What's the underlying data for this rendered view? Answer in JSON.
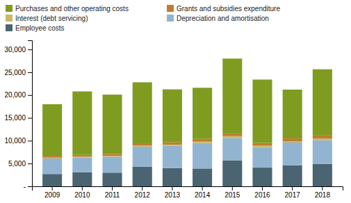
{
  "chart_data": {
    "type": "bar",
    "stacked": true,
    "grid": false,
    "legend": "upper left",
    "categories": [
      "2009",
      "2010",
      "2011",
      "2012",
      "2013",
      "2014",
      "2015",
      "2016",
      "2017",
      "2018"
    ],
    "series": [
      {
        "name": "Employee costs",
        "color": "#4a6471",
        "values": [
          2700,
          3100,
          3000,
          4300,
          4000,
          3900,
          5700,
          4100,
          4600,
          4900
        ]
      },
      {
        "name": "Depreciation and amortisation",
        "color": "#92b4d0",
        "values": [
          3400,
          3200,
          3500,
          4400,
          4900,
          5600,
          4900,
          4500,
          5000,
          5200
        ]
      },
      {
        "name": "Interest (debt servicing)",
        "color": "#c8b86a",
        "values": [
          200,
          200,
          200,
          250,
          250,
          300,
          400,
          300,
          300,
          350
        ]
      },
      {
        "name": "Grants and subsidies expenditure",
        "color": "#c07d2e",
        "values": [
          400,
          400,
          400,
          500,
          500,
          600,
          600,
          600,
          600,
          700
        ]
      },
      {
        "name": "Purchases and other operating costs",
        "color": "#7f9c20",
        "values": [
          11300,
          13900,
          13000,
          13350,
          11600,
          11200,
          16400,
          13900,
          10700,
          14500
        ]
      }
    ],
    "ylim": [
      0,
      32000
    ],
    "yticks": [
      {
        "value": 0,
        "label": "-"
      },
      {
        "value": 5000,
        "label": "5,000"
      },
      {
        "value": 10000,
        "label": "10,000"
      },
      {
        "value": 15000,
        "label": "15,000"
      },
      {
        "value": 20000,
        "label": "20,000"
      },
      {
        "value": 25000,
        "label": "25,000"
      },
      {
        "value": 30000,
        "label": "30,000"
      }
    ]
  }
}
